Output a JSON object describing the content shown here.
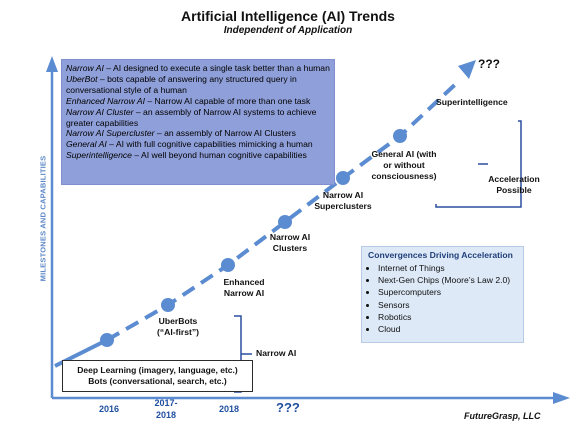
{
  "title": "Artificial Intelligence (AI) Trends",
  "subtitle": "Independent of Application",
  "y_axis_label": "MILESTONES AND CAPABILITIES",
  "top_unknown": "???",
  "definitions": [
    {
      "term": "Narrow AI",
      "text": " – AI designed to execute a single task better than a human"
    },
    {
      "term": "UberBot",
      "text": " – bots capable of answering any structured query in conversational style of a human"
    },
    {
      "term": "Enhanced Narrow AI",
      "text": " – Narrow AI capable of more than one task"
    },
    {
      "term": "Narrow AI Cluster",
      "text": " – an assembly of Narrow AI systems to achieve greater capabilities"
    },
    {
      "term": "Narrow AI Supercluster",
      "text": " – an assembly of Narrow AI Clusters"
    },
    {
      "term": "General AI",
      "text": " – AI with full cognitive capabilities mimicking a human"
    },
    {
      "term": "Superintelligence",
      "text": " – AI well beyond human cognitive capabilities"
    }
  ],
  "nodes": {
    "uberbots": {
      "line1": "UberBots",
      "line2": "(“AI-first”)"
    },
    "enhanced": {
      "line1": "Enhanced",
      "line2": "Narrow AI"
    },
    "clusters": {
      "line1": "Narrow AI",
      "line2": "Clusters"
    },
    "superclusters": {
      "line1": "Narrow AI",
      "line2": "Superclusters"
    },
    "general": {
      "line1": "General AI (with",
      "line2": "or without",
      "line3": "consciousness)"
    },
    "superintelligence": "Superintelligence"
  },
  "acceleration": {
    "line1": "Acceleration",
    "line2": "Possible"
  },
  "narrow_ai_bracket": "Narrow AI",
  "deep_learning": {
    "line1": "Deep Learning (imagery, language, etc.)",
    "line2": "Bots (conversational, search, etc.)"
  },
  "convergences": {
    "title": "Convergences Driving Acceleration",
    "items": [
      "Internet of Things",
      "Next-Gen Chips (Moore’s Law 2.0)",
      "Supercomputers",
      "Sensors",
      "Robotics",
      "Cloud"
    ]
  },
  "years": {
    "y2016": "2016",
    "y2017a": "2017-",
    "y2017b": "2018",
    "y2018": "2018",
    "unknown": "???"
  },
  "credit": "FutureGrasp, LLC",
  "colors": {
    "accent": "#5b8bd0",
    "definitions_bg": "#8f9fd9",
    "convergence_bg": "#dde9f7",
    "year_text": "#1f4f9f"
  }
}
